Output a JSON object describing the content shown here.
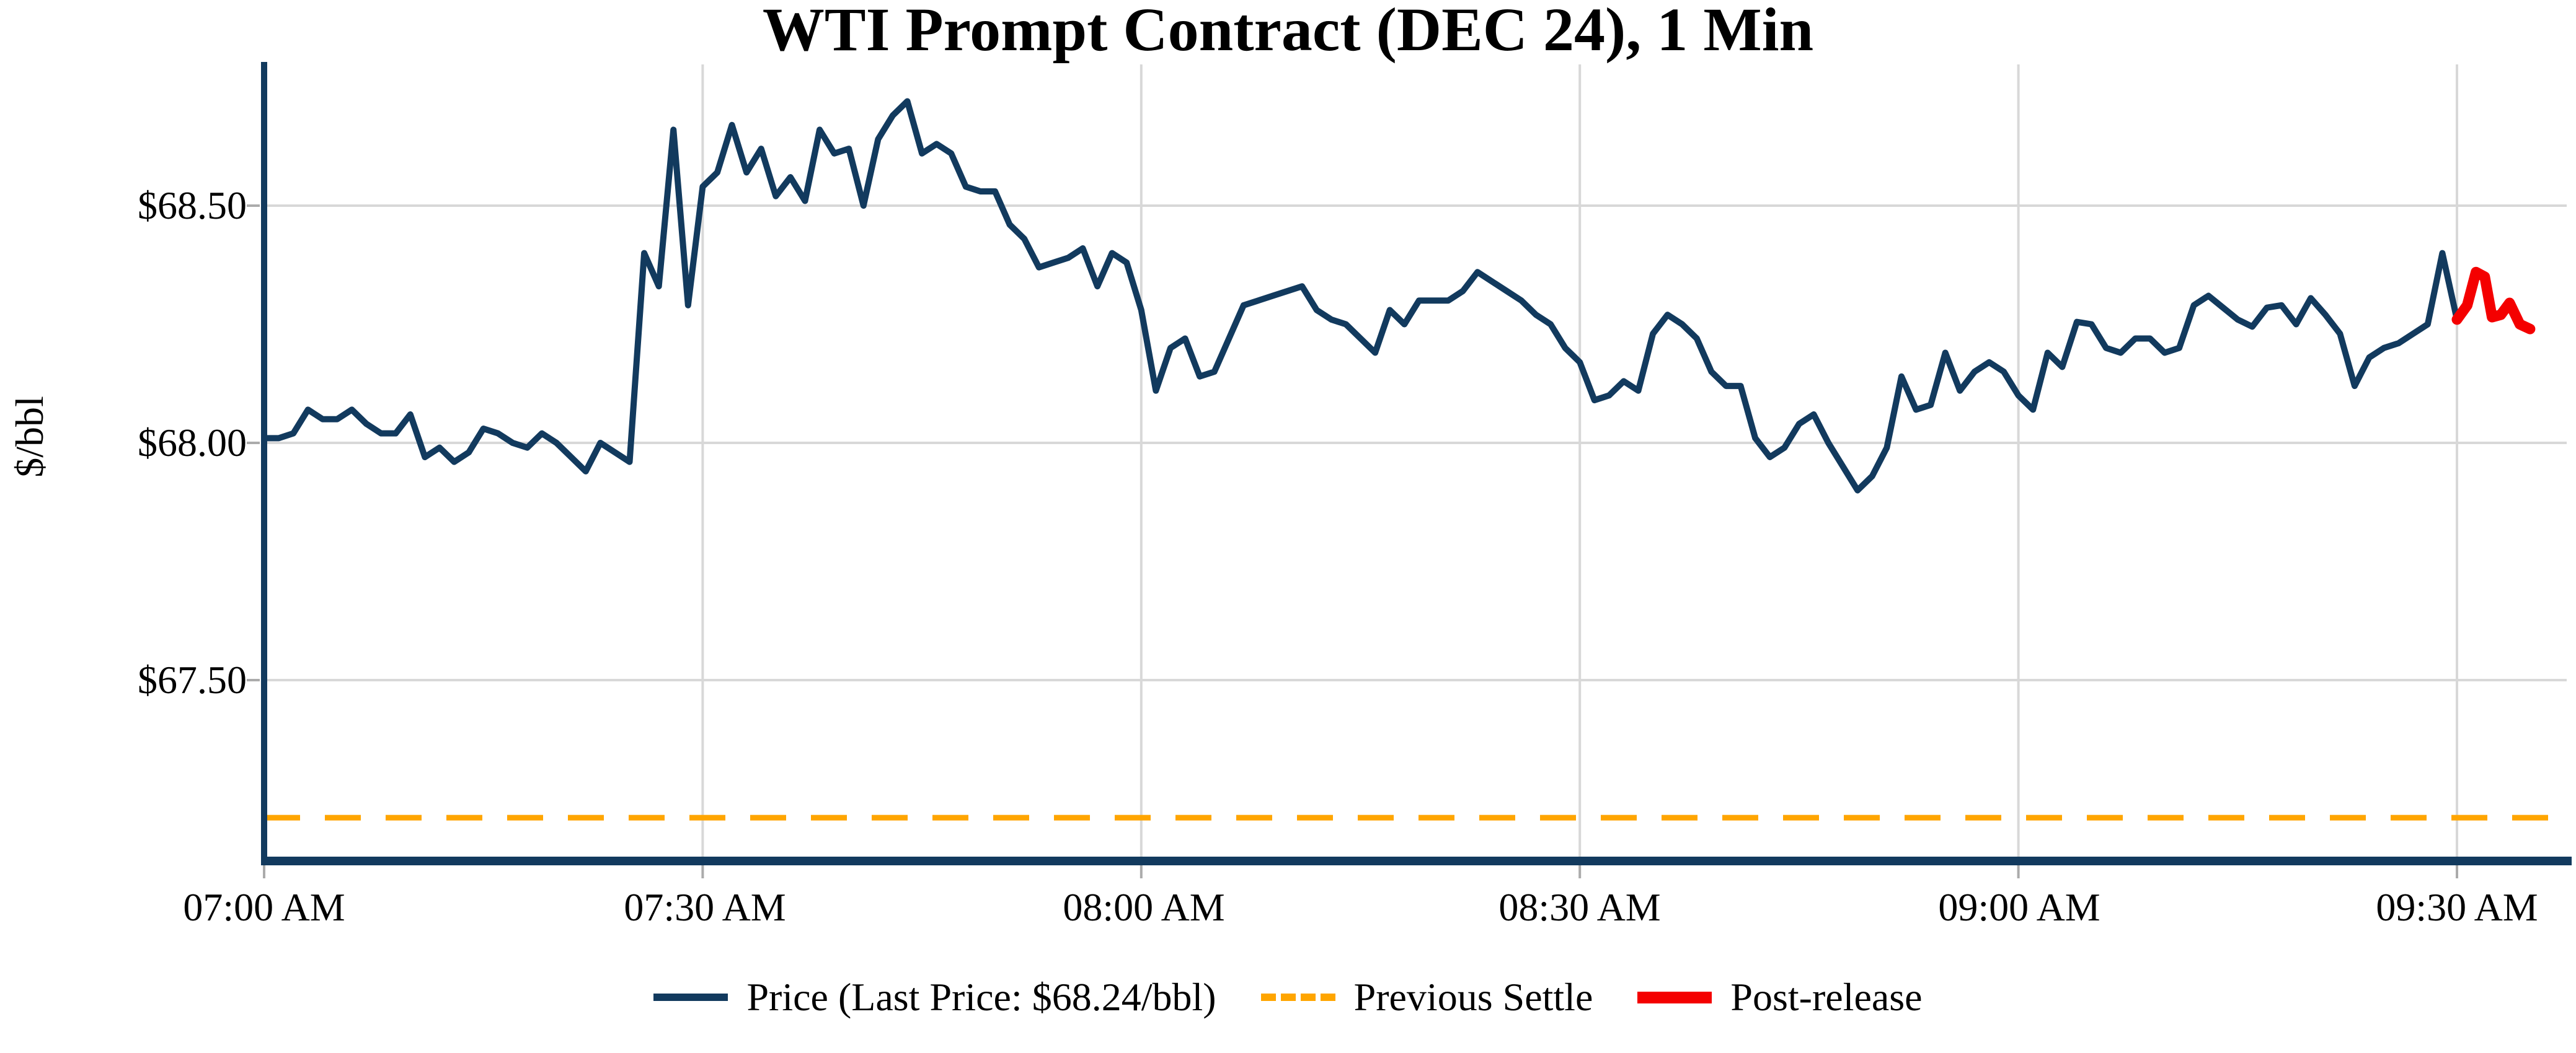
{
  "chart_data": {
    "type": "line",
    "title": "WTI Prompt Contract (DEC 24), 1 Min",
    "ylabel": "$/bbl",
    "xlabel": "",
    "grid": true,
    "legend_position": "bottom-center",
    "x_unit": "minutes since 07:00 AM, 1-minute bars",
    "xlim_minutes": [
      0,
      157.5
    ],
    "ylim": [
      67.12,
      68.8
    ],
    "last_price": 68.24,
    "previous_settle": 67.21,
    "xticks": [
      {
        "min": 0,
        "label": "07:00 AM"
      },
      {
        "min": 30,
        "label": "07:30 AM"
      },
      {
        "min": 60,
        "label": "08:00 AM"
      },
      {
        "min": 90,
        "label": "08:30 AM"
      },
      {
        "min": 120,
        "label": "09:00 AM"
      },
      {
        "min": 150,
        "label": "09:30 AM"
      }
    ],
    "yticks": [
      {
        "value": 68.5,
        "label": "$68.50"
      },
      {
        "value": 68.0,
        "label": "$68.00"
      },
      {
        "value": 67.5,
        "label": "$67.50"
      }
    ],
    "colors": {
      "price": "#123A5E",
      "previous_settle": "#FFA500",
      "post_release": "#F40000",
      "grid": "#D8D8D8",
      "axis": "#123A5E",
      "tick": "#ABABAB"
    },
    "series": [
      {
        "name": "Price (Last Price: $68.24/bbl)",
        "color": "#123A5E",
        "width": 10,
        "style": "solid",
        "x_start": 0,
        "x_step": 1,
        "values": [
          68.01,
          68.01,
          68.02,
          68.07,
          68.05,
          68.05,
          68.07,
          68.04,
          68.02,
          68.02,
          68.06,
          67.97,
          67.99,
          67.96,
          67.98,
          68.03,
          68.02,
          68.0,
          67.99,
          68.02,
          68.0,
          67.97,
          67.94,
          68.0,
          67.98,
          67.96,
          68.4,
          68.33,
          68.66,
          68.29,
          68.54,
          68.57,
          68.67,
          68.57,
          68.62,
          68.52,
          68.56,
          68.51,
          68.66,
          68.61,
          68.62,
          68.5,
          68.64,
          68.69,
          68.72,
          68.61,
          68.63,
          68.61,
          68.54,
          68.53,
          68.53,
          68.46,
          68.43,
          68.37,
          68.38,
          68.39,
          68.41,
          68.33,
          68.4,
          68.38,
          68.28,
          68.11,
          68.2,
          68.22,
          68.14,
          68.15,
          68.22,
          68.29,
          68.3,
          68.31,
          68.32,
          68.33,
          68.28,
          68.26,
          68.25,
          68.22,
          68.19,
          68.28,
          68.25,
          68.3,
          68.3,
          68.3,
          68.32,
          68.36,
          68.34,
          68.32,
          68.3,
          68.27,
          68.25,
          68.2,
          68.17,
          68.09,
          68.1,
          68.13,
          68.11,
          68.23,
          68.27,
          68.25,
          68.22,
          68.15,
          68.12,
          68.12,
          68.01,
          67.97,
          67.99,
          68.04,
          68.06,
          68.0,
          67.95,
          67.9,
          67.93,
          67.99,
          68.14,
          68.07,
          68.08,
          68.19,
          68.11,
          68.15,
          68.17,
          68.15,
          68.1,
          68.07,
          68.19,
          68.16,
          68.255,
          68.25,
          68.2,
          68.19,
          68.22,
          68.22,
          68.19,
          68.2,
          68.29,
          68.31,
          68.285,
          68.26,
          68.245,
          68.285,
          68.29,
          68.25,
          68.305,
          68.27,
          68.23,
          68.12,
          68.18,
          68.2,
          68.21,
          68.23,
          68.25,
          68.4,
          68.26
        ]
      },
      {
        "name": "Previous Settle",
        "color": "#FFA500",
        "width": 9,
        "style": "dashed",
        "dash": [
          58,
          40
        ],
        "constant": 67.21
      },
      {
        "name": "Post-release",
        "color": "#F40000",
        "width": 17,
        "style": "solid",
        "x": [
          150.0,
          150.7,
          151.3,
          151.9,
          152.4,
          153.0,
          153.6,
          154.3,
          155.0
        ],
        "values": [
          68.26,
          68.29,
          68.36,
          68.35,
          68.265,
          68.27,
          68.295,
          68.25,
          68.24
        ]
      }
    ],
    "legend": [
      {
        "label": "Price (Last Price: $68.24/bbl)",
        "color": "#123A5E",
        "swatch": "line"
      },
      {
        "label": "Previous Settle",
        "color": "#FFA500",
        "swatch": "dash"
      },
      {
        "label": "Post-release",
        "color": "#F40000",
        "swatch": "thick"
      }
    ]
  }
}
